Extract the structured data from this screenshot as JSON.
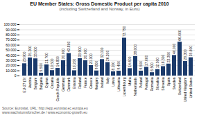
{
  "chart_data": {
    "type": "bar",
    "title": "EU Member States: Gross Domestic Product per capita 2010",
    "subtitle": "(including Switzerland and Norway, in Euro)",
    "annotations": [
      "Source: Eurostat, URL: http://epp.eurostat.ec.europa.eu",
      "www.wachstumsforscher.de / www.economic-growth.eu"
    ],
    "categories": [
      "EU-27 (S)",
      "Austria",
      "Belgium",
      "Bulgaria",
      "Cyprus",
      "Croatia",
      "Czech Republic",
      "Germany",
      "Denmark",
      "Estonia",
      "Finland",
      "France",
      "Greece",
      "Hungary",
      "Ireland",
      "Italy",
      "Latvia",
      "Lithuania",
      "Luxembourg",
      "Malta",
      "Netherlands",
      "Poland",
      "Portugal",
      "Romania",
      "Slovakia",
      "Slovenia",
      "Spain",
      "Sweden",
      "Switzerland",
      "United Kingdom",
      "United States"
    ],
    "values": [
      23900,
      35200,
      33500,
      5500,
      21700,
      10500,
      14800,
      30000,
      43800,
      10200,
      33900,
      30000,
      20300,
      9800,
      32000,
      26200,
      8200,
      9400,
      73750,
      14400,
      38000,
      9500,
      17000,
      6500,
      12500,
      18300,
      23300,
      40000,
      66000,
      28300,
      35600
    ],
    "value_labels": [
      "23.900",
      "35.200",
      "33.500",
      "5.500",
      "21.700",
      "10.500",
      "14.800",
      "30.000",
      "43.800",
      "10.200",
      "33.900",
      "30.000",
      "20.300",
      "9.800",
      "32.000",
      "26.200",
      "8.200",
      "9.400",
      "73.750",
      "14.400",
      "38.000",
      "9.500",
      "17.000",
      "6.500",
      "12.500",
      "18.300",
      "23.300",
      "40.000",
      "66.000",
      "28.300",
      "35.600"
    ],
    "color": "#1a3a6b",
    "ylim": [
      0,
      100000
    ],
    "yticks": [
      0,
      {
        "value": 10000,
        "label": "10.000"
      },
      {
        "value": 20000,
        "label": "20.000"
      },
      {
        "value": 30000,
        "label": "30.000"
      },
      {
        "value": 40000,
        "label": "40.000"
      },
      {
        "value": 50000,
        "label": "50.000"
      },
      {
        "value": 60000,
        "label": "60.000"
      },
      {
        "value": 70000,
        "label": "70.000"
      },
      {
        "value": 80000,
        "label": "80.000"
      },
      {
        "value": 90000,
        "label": "90.000"
      },
      {
        "value": 100000,
        "label": "100.000"
      }
    ],
    "grid": true,
    "data_labels": true
  }
}
